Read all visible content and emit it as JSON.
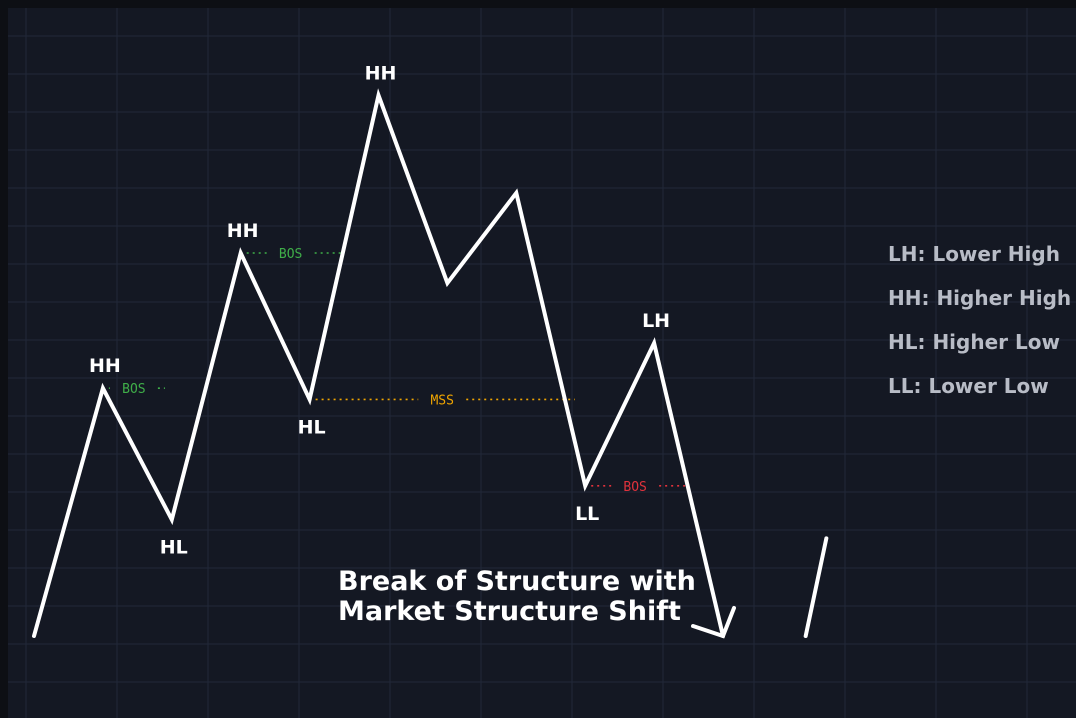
{
  "chart_data": {
    "type": "line",
    "title_lines": [
      "Break of Structure with",
      "Market Structure Shift"
    ],
    "colors": {
      "background": "#0d0f14",
      "plot_bg": "#141823",
      "grid": "#222838",
      "price_line": "#ffffff",
      "bos_bull": "#3fae49",
      "bos_bear": "#e0323c",
      "mss": "#f0a500"
    },
    "series": [
      {
        "points": [
          {
            "x": 0,
            "y": 0
          },
          {
            "x": 1,
            "y": 3.3
          },
          {
            "x": 2,
            "y": 1.55
          },
          {
            "x": 3,
            "y": 5.1
          },
          {
            "x": 4,
            "y": 3.15
          },
          {
            "x": 5,
            "y": 7.2
          },
          {
            "x": 6,
            "y": 4.7
          },
          {
            "x": 7,
            "y": 5.9
          },
          {
            "x": 8,
            "y": 2.0
          },
          {
            "x": 9,
            "y": 3.9
          },
          {
            "x": 10,
            "y": 0
          }
        ],
        "trailing_segment": [
          {
            "x": 11.2,
            "y": 0
          },
          {
            "x": 11.5,
            "y": 1.3
          }
        ]
      }
    ],
    "point_labels": [
      {
        "index": 1,
        "text": "HH",
        "pos": "above"
      },
      {
        "index": 2,
        "text": "HL",
        "pos": "below"
      },
      {
        "index": 3,
        "text": "HH",
        "pos": "above"
      },
      {
        "index": 4,
        "text": "HL",
        "pos": "below"
      },
      {
        "index": 5,
        "text": "HH",
        "pos": "above"
      },
      {
        "index": 8,
        "text": "LL",
        "pos": "below"
      },
      {
        "index": 9,
        "text": "LH",
        "pos": "above"
      }
    ],
    "levels": [
      {
        "label": "BOS",
        "y": 3.3,
        "x_start": 1,
        "x_end": 1.9,
        "color_key": "bos_bull"
      },
      {
        "label": "BOS",
        "y": 5.1,
        "x_start": 3,
        "x_end": 4.45,
        "color_key": "bos_bull"
      },
      {
        "label": "MSS",
        "y": 3.15,
        "x_start": 4,
        "x_end": 7.85,
        "color_key": "mss"
      },
      {
        "label": "BOS",
        "y": 2.0,
        "x_start": 8,
        "x_end": 9.45,
        "color_key": "bos_bear"
      }
    ],
    "legend": [
      "LH: Lower High",
      "HH: Higher High",
      "HL: Higher Low",
      "LL: Lower Low"
    ],
    "legend_position": "right",
    "grid": true
  }
}
